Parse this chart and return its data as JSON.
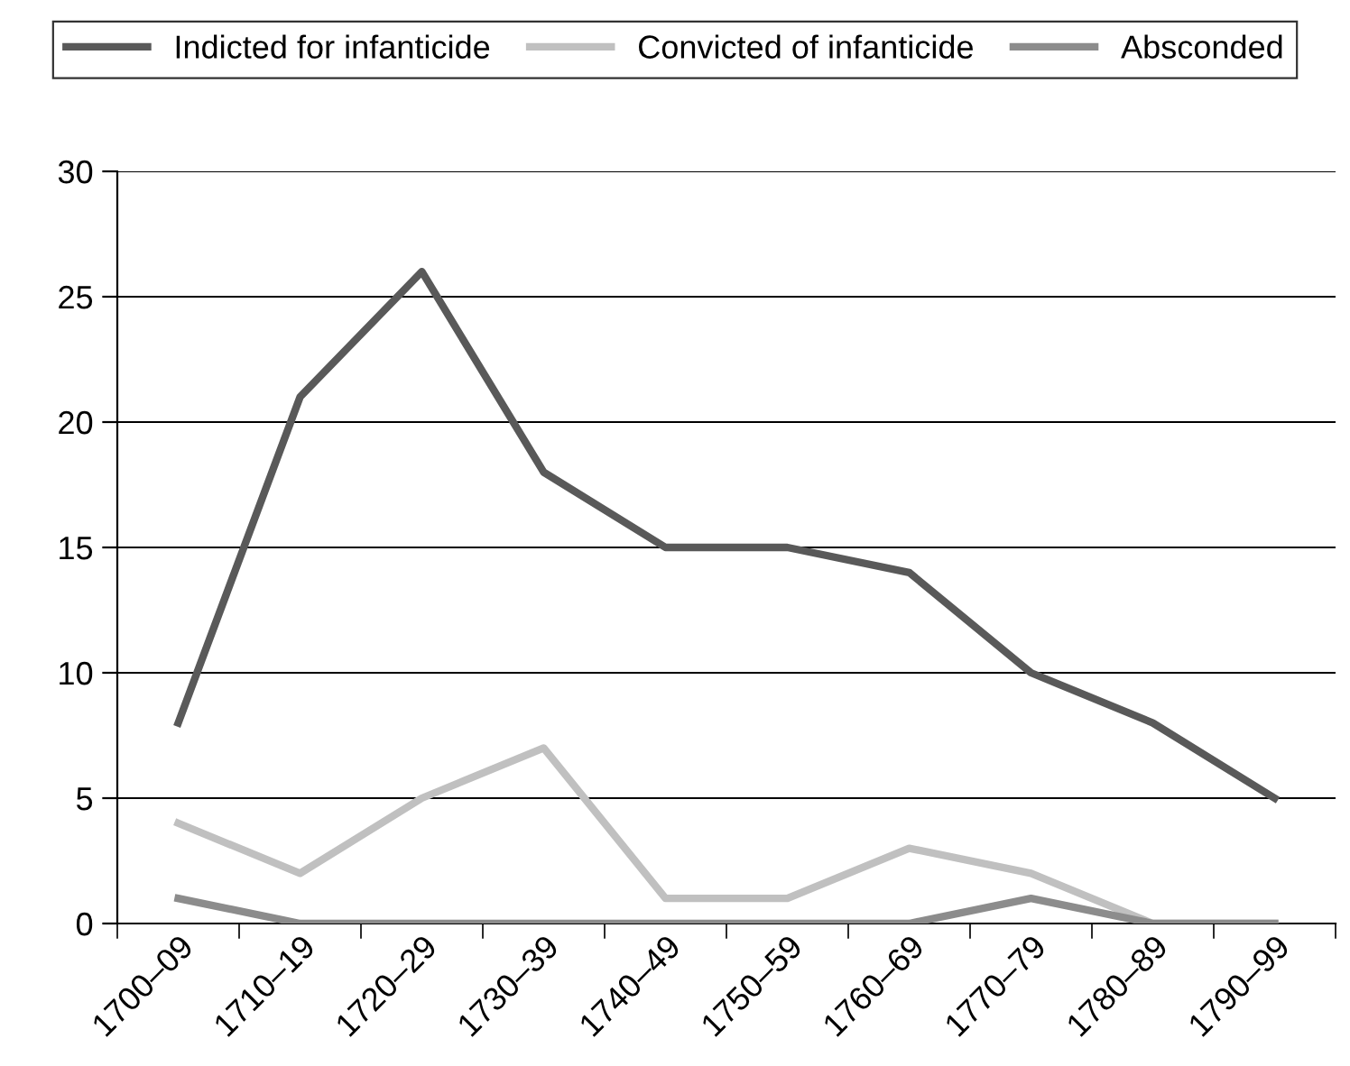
{
  "chart_data": {
    "type": "line",
    "categories": [
      "1700–09",
      "1710–19",
      "1720–29",
      "1730–39",
      "1740–49",
      "1750–59",
      "1760–69",
      "1770–79",
      "1780–89",
      "1790–99"
    ],
    "series": [
      {
        "name": "Indicted for infanticide",
        "color": "#595959",
        "values": [
          8,
          21,
          26,
          18,
          15,
          15,
          14,
          10,
          8,
          5
        ]
      },
      {
        "name": "Convicted of infanticide",
        "color": "#c0c0c0",
        "values": [
          4,
          2,
          5,
          7,
          1,
          1,
          3,
          2,
          0,
          0
        ]
      },
      {
        "name": "Absconded",
        "color": "#8c8c8c",
        "values": [
          1,
          0,
          0,
          0,
          0,
          0,
          0,
          1,
          0,
          0
        ]
      }
    ],
    "ylim": [
      0,
      30
    ],
    "yticks": [
      0,
      5,
      10,
      15,
      20,
      25,
      30
    ],
    "grid": "y",
    "legend": "top",
    "marker": "none",
    "line_style": "solid"
  }
}
